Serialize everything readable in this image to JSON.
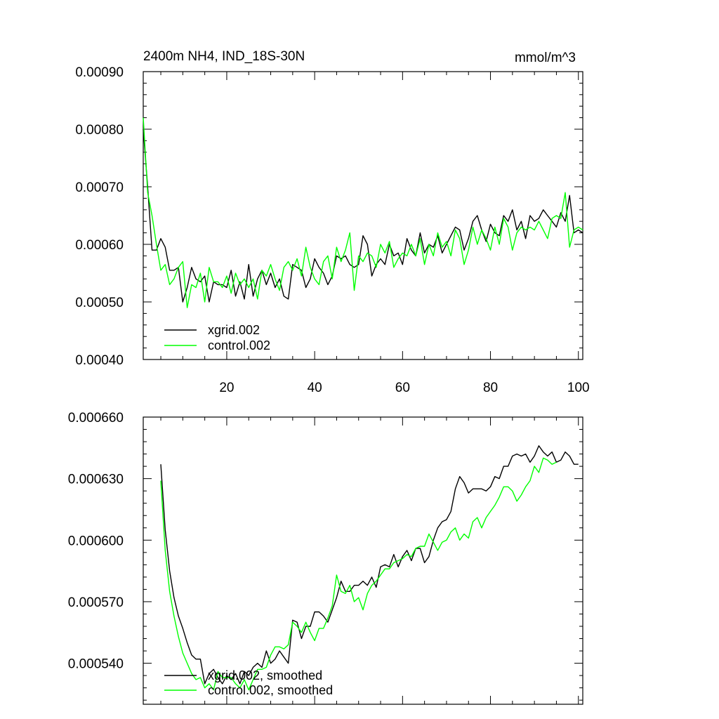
{
  "chart_data": [
    {
      "type": "line",
      "title": "2400m NH4, IND_18S-30N",
      "units": "mmol/m^3",
      "xlim": [
        1,
        101
      ],
      "ylim": [
        0.0004,
        0.0009
      ],
      "xticks": [
        20,
        40,
        60,
        80,
        100
      ],
      "xtick_labels": [
        "20",
        "40",
        "60",
        "80",
        "100"
      ],
      "yticks": [
        0.0004,
        0.0005,
        0.0006,
        0.0007,
        0.0008,
        0.0009
      ],
      "ytick_labels": [
        "0.00040",
        "0.00050",
        "0.00060",
        "0.00070",
        "0.00080",
        "0.00090"
      ],
      "legend_position": "bottom-left",
      "series": [
        {
          "name": "xgrid.002",
          "color": "#000000",
          "x_start": 1,
          "values": [
            0.0008,
            0.0007,
            0.00059,
            0.00059,
            0.00061,
            0.000595,
            0.000555,
            0.000555,
            0.00056,
            0.0005,
            0.000525,
            0.00056,
            0.00054,
            0.000535,
            0.000545,
            0.0005,
            0.000535,
            0.00053,
            0.00053,
            0.000525,
            0.000555,
            0.00051,
            0.000535,
            0.000505,
            0.000565,
            0.00051,
            0.00054,
            0.000555,
            0.00053,
            0.00055,
            0.000525,
            0.00054,
            0.00051,
            0.000505,
            0.000565,
            0.00056,
            0.000555,
            0.000525,
            0.00054,
            0.000575,
            0.00056,
            0.00055,
            0.00053,
            0.000545,
            0.00058,
            0.000575,
            0.00058,
            0.000565,
            0.00056,
            0.000565,
            0.000615,
            0.0006,
            0.000545,
            0.000565,
            0.000575,
            0.000565,
            0.0006,
            0.00058,
            0.000585,
            0.000565,
            0.00061,
            0.00059,
            0.00058,
            0.00062,
            0.000585,
            0.0006,
            0.000595,
            0.000615,
            0.000585,
            0.0006,
            0.000615,
            0.00063,
            0.000625,
            0.00059,
            0.00061,
            0.00064,
            0.00065,
            0.000625,
            0.000605,
            0.000635,
            0.00062,
            0.000615,
            0.00065,
            0.00064,
            0.00066,
            0.000625,
            0.00064,
            0.00061,
            0.00065,
            0.00064,
            0.000645,
            0.00066,
            0.00065,
            0.00064,
            0.00063,
            0.000655,
            0.00064,
            0.000685,
            0.00062,
            0.000625,
            0.00062
          ]
        },
        {
          "name": "control.002",
          "color": "#00ff00",
          "x_start": 1,
          "values": [
            0.00082,
            0.00069,
            0.00065,
            0.0006,
            0.000555,
            0.000565,
            0.00053,
            0.00054,
            0.00056,
            0.00057,
            0.00049,
            0.00053,
            0.000525,
            0.00055,
            0.0005,
            0.00056,
            0.000535,
            0.000535,
            0.000525,
            0.000545,
            0.000515,
            0.00055,
            0.00053,
            0.00054,
            0.000525,
            0.00054,
            0.000505,
            0.000555,
            0.000545,
            0.000565,
            0.00054,
            0.00052,
            0.00056,
            0.00057,
            0.000555,
            0.000575,
            0.000545,
            0.000595,
            0.00056,
            0.00054,
            0.00053,
            0.00057,
            0.00058,
            0.00054,
            0.000595,
            0.00057,
            0.00059,
            0.00062,
            0.00052,
            0.00058,
            0.00057,
            0.000585,
            0.00058,
            0.00056,
            0.0006,
            0.000585,
            0.000605,
            0.00056,
            0.000575,
            0.000585,
            0.00058,
            0.0006,
            0.00058,
            0.00061,
            0.000565,
            0.0006,
            0.00058,
            0.00062,
            0.000595,
            0.000605,
            0.00058,
            0.000625,
            0.00061,
            0.000565,
            0.00059,
            0.00063,
            0.0006,
            0.000625,
            0.00061,
            0.00059,
            0.00063,
            0.0006,
            0.000645,
            0.00063,
            0.00059,
            0.00062,
            0.00063,
            0.000625,
            0.00063,
            0.000625,
            0.00064,
            0.000625,
            0.00061,
            0.000645,
            0.00065,
            0.000645,
            0.00069,
            0.000595,
            0.000625,
            0.00063,
            0.000625
          ]
        }
      ]
    },
    {
      "type": "line",
      "title": "",
      "xlim": [
        1,
        101
      ],
      "ylim": [
        0.00052,
        0.00066
      ],
      "xticks": [
        20,
        40,
        60,
        80,
        100
      ],
      "xtick_labels": [],
      "yticks": [
        0.00054,
        0.00057,
        0.0006,
        0.00063,
        0.00066
      ],
      "ytick_labels": [
        "0.000540",
        "0.000570",
        "0.000600",
        "0.000630",
        "0.000660"
      ],
      "legend_position": "bottom-left",
      "series": [
        {
          "name": "xgrid.002, smoothed",
          "color": "#000000",
          "x_start": 5,
          "values": [
            0.000637,
            0.000605,
            0.000585,
            0.000572,
            0.000563,
            0.000557,
            0.00055,
            0.000544,
            0.000542,
            0.000542,
            0.00053,
            0.000535,
            0.000537,
            0.000533,
            0.00053,
            0.000534,
            0.000532,
            0.000535,
            0.00053,
            0.000536,
            0.000534,
            0.000538,
            0.00054,
            0.000538,
            0.000546,
            0.00054,
            0.000542,
            0.000546,
            0.000543,
            0.00054,
            0.000561,
            0.00056,
            0.000552,
            0.000558,
            0.000558,
            0.000565,
            0.000565,
            0.000563,
            0.00056,
            0.000566,
            0.000572,
            0.00058,
            0.000575,
            0.000575,
            0.000578,
            0.000578,
            0.00058,
            0.000578,
            0.000582,
            0.000577,
            0.000587,
            0.000588,
            0.000587,
            0.000593,
            0.000587,
            0.000592,
            0.000595,
            0.00059,
            0.000596,
            0.000596,
            0.000589,
            0.000592,
            0.0006,
            0.000606,
            0.000609,
            0.00061,
            0.000614,
            0.000625,
            0.000631,
            0.000628,
            0.000623,
            0.000625,
            0.000625,
            0.000625,
            0.000624,
            0.000626,
            0.000631,
            0.00063,
            0.000636,
            0.000636,
            0.000641,
            0.000642,
            0.000641,
            0.000642,
            0.000638,
            0.000641,
            0.000646,
            0.000643,
            0.000641,
            0.000643,
            0.000638,
            0.000639,
            0.000643,
            0.000641,
            0.000637,
            0.000637
          ]
        },
        {
          "name": "control.002, smoothed",
          "color": "#00ff00",
          "x_start": 5,
          "values": [
            0.000629,
            0.000595,
            0.000575,
            0.000563,
            0.000553,
            0.000545,
            0.00054,
            0.000535,
            0.000532,
            0.000533,
            0.000528,
            0.00053,
            0.000527,
            0.000536,
            0.000533,
            0.000533,
            0.000533,
            0.00053,
            0.000528,
            0.000532,
            0.000527,
            0.000532,
            0.000537,
            0.000537,
            0.000538,
            0.000544,
            0.000548,
            0.000548,
            0.000547,
            0.000549,
            0.00056,
            0.000558,
            0.000555,
            0.00056,
            0.000555,
            0.000551,
            0.000557,
            0.000557,
            0.000562,
            0.000568,
            0.000583,
            0.000575,
            0.000574,
            0.000578,
            0.00057,
            0.000572,
            0.000566,
            0.000574,
            0.000578,
            0.00058,
            0.000583,
            0.000586,
            0.000586,
            0.000589,
            0.00059,
            0.000591,
            0.000593,
            0.000592,
            0.000596,
            0.000597,
            0.000597,
            0.000603,
            0.000599,
            0.000595,
            0.000599,
            0.0006,
            0.000604,
            0.000606,
            0.0006,
            0.000603,
            0.000601,
            0.000609,
            0.000611,
            0.000606,
            0.000611,
            0.000614,
            0.000617,
            0.000621,
            0.000626,
            0.000626,
            0.000624,
            0.000619,
            0.000622,
            0.000626,
            0.000629,
            0.000636,
            0.000633,
            0.00064,
            0.000639,
            0.000637,
            0.000638
          ]
        }
      ]
    }
  ]
}
